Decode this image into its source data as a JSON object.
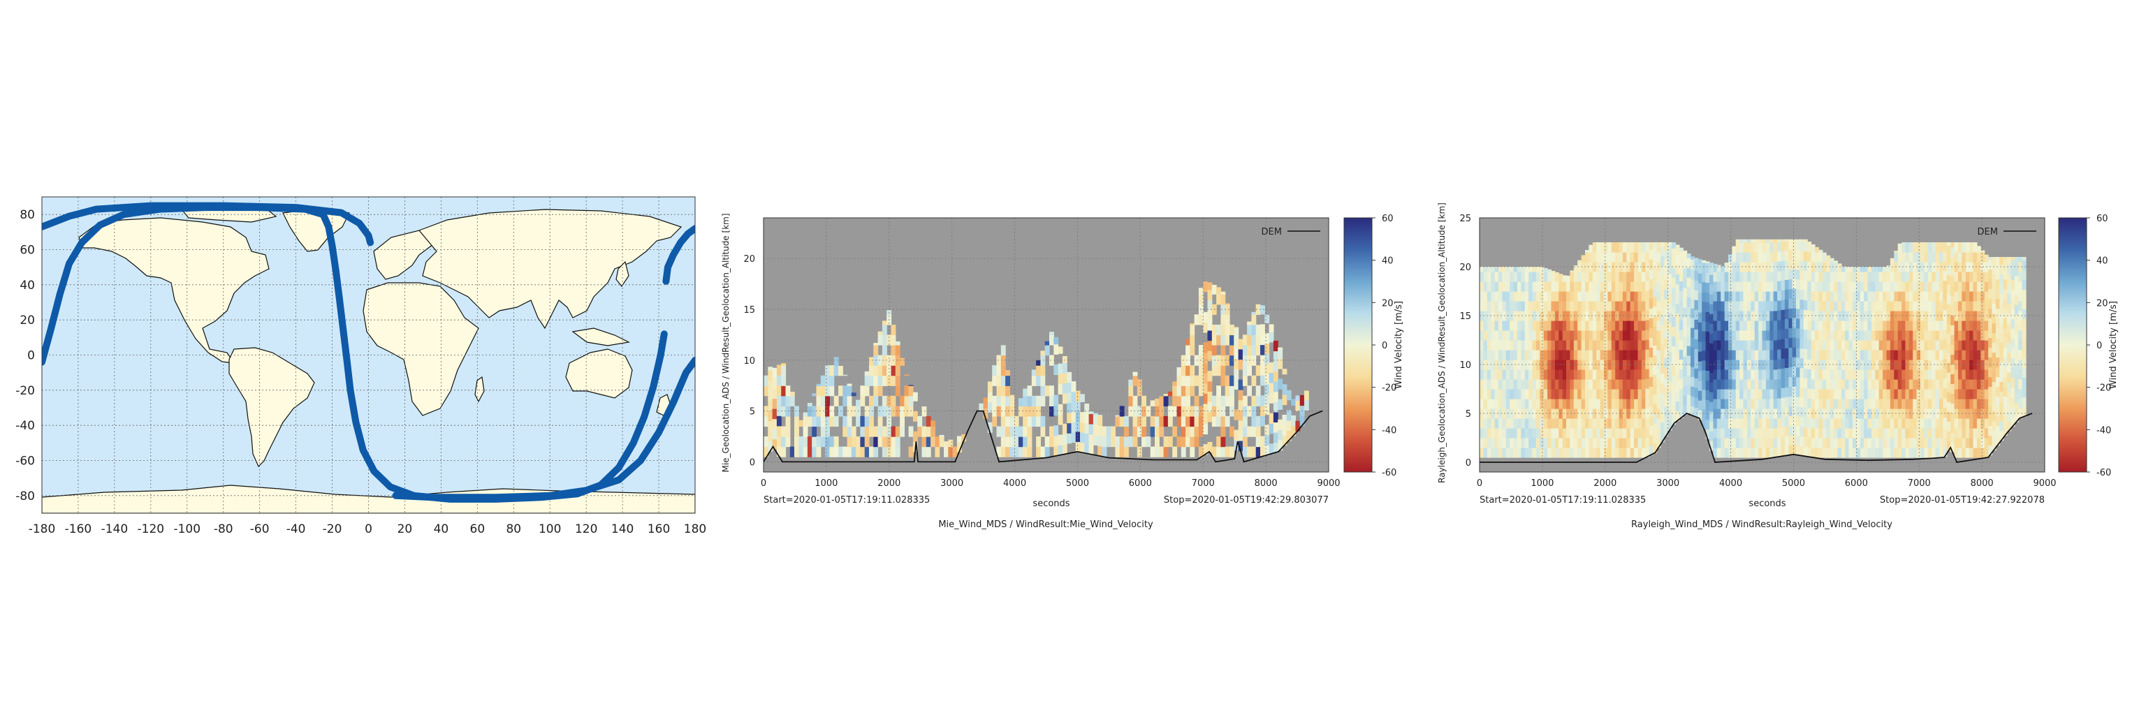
{
  "colors": {
    "ocean": "#cfe9fa",
    "land": "#fefbe0",
    "track": "#0e5aa8",
    "no_data": "#999999",
    "dem_line": "#111111",
    "colormap": [
      "#a71e26",
      "#d2563b",
      "#ee9c5a",
      "#f7dd9c",
      "#f2f4d6",
      "#b9dcea",
      "#6fa8d1",
      "#3c66aa",
      "#2a2c7c"
    ]
  },
  "chart_data": [
    {
      "type": "map",
      "title": "",
      "xlim": [
        -180,
        180
      ],
      "ylim": [
        -90,
        90
      ],
      "x_ticks": [
        "-180",
        "-160",
        "-140",
        "-120",
        "-100",
        "-80",
        "-60",
        "-40",
        "-20",
        "0",
        "20",
        "40",
        "60",
        "80",
        "100",
        "120",
        "140",
        "160",
        "180"
      ],
      "y_ticks": [
        "80",
        "60",
        "40",
        "20",
        "0",
        "-20",
        "-40",
        "-60",
        "-80"
      ],
      "grid": true,
      "series": [
        {
          "kind": "ground-track",
          "segments": [
            [
              [
                -180,
                -4
              ],
              [
                -175,
                15
              ],
              [
                -170,
                35
              ],
              [
                -165,
                52
              ],
              [
                -158,
                64
              ],
              [
                -148,
                74
              ],
              [
                -135,
                80
              ],
              [
                -115,
                83
              ],
              [
                -90,
                84
              ],
              [
                -60,
                84
              ],
              [
                -35,
                83
              ],
              [
                -25,
                80
              ],
              [
                -22,
                73
              ],
              [
                -20,
                62
              ],
              [
                -18,
                48
              ],
              [
                -16,
                32
              ],
              [
                -14,
                15
              ],
              [
                -12,
                -2
              ],
              [
                -10,
                -20
              ],
              [
                -7,
                -38
              ],
              [
                -3,
                -54
              ],
              [
                3,
                -66
              ],
              [
                12,
                -75
              ],
              [
                25,
                -80
              ],
              [
                45,
                -82
              ],
              [
                70,
                -82
              ],
              [
                95,
                -81
              ],
              [
                115,
                -79
              ],
              [
                128,
                -74
              ],
              [
                138,
                -64
              ],
              [
                146,
                -50
              ],
              [
                152,
                -35
              ],
              [
                157,
                -18
              ],
              [
                161,
                0
              ],
              [
                163,
                12
              ]
            ],
            [
              [
                -180,
                73
              ],
              [
                -165,
                79
              ],
              [
                -150,
                83
              ],
              [
                -120,
                85
              ],
              [
                -80,
                85
              ],
              [
                -40,
                84
              ],
              [
                -15,
                81
              ],
              [
                -5,
                75
              ],
              [
                0,
                68
              ],
              [
                1,
                64
              ]
            ],
            [
              [
                15,
                -80
              ],
              [
                35,
                -81
              ],
              [
                70,
                -81
              ],
              [
                100,
                -80
              ],
              [
                120,
                -77
              ],
              [
                138,
                -71
              ],
              [
                150,
                -60
              ],
              [
                160,
                -44
              ],
              [
                168,
                -27
              ],
              [
                175,
                -10
              ],
              [
                180,
                -3
              ]
            ],
            [
              [
                164,
                42
              ],
              [
                165,
                50
              ],
              [
                168,
                57
              ],
              [
                172,
                64
              ],
              [
                176,
                69
              ],
              [
                180,
                72
              ]
            ]
          ]
        }
      ]
    },
    {
      "type": "heatmap",
      "title": "Mie_Wind_MDS / WindResult:Mie_Wind_Velocity",
      "xlabel": "seconds",
      "ylabel": "Mie_Geolocation_ADS / WindResult_Geolocation_Altitude [km]",
      "xlim": [
        0,
        9000
      ],
      "ylim": [
        -1,
        24
      ],
      "x_ticks": [
        "0",
        "1000",
        "2000",
        "3000",
        "4000",
        "5000",
        "6000",
        "7000",
        "8000",
        "9000"
      ],
      "y_ticks": [
        "0",
        "5",
        "10",
        "15",
        "20"
      ],
      "start_label": "Start=2020-01-05T17:19:11.028335",
      "stop_label": "Stop=2020-01-05T19:42:29.803077",
      "legend": [
        "DEM"
      ],
      "colorbar_label": "Wind Velocity [m/s]",
      "colorbar_range": [
        -60,
        60
      ],
      "colorbar_ticks": [
        "60",
        "40",
        "20",
        "0",
        "-20",
        "-40",
        "-60"
      ],
      "valid_from_altitude": 0.5,
      "data_top_profile": [
        [
          0,
          9
        ],
        [
          300,
          10
        ],
        [
          600,
          4
        ],
        [
          900,
          8
        ],
        [
          1100,
          11
        ],
        [
          1500,
          6
        ],
        [
          1800,
          12
        ],
        [
          2000,
          15
        ],
        [
          2300,
          8
        ],
        [
          2600,
          5
        ],
        [
          2900,
          2
        ],
        [
          3300,
          3
        ],
        [
          3600,
          8
        ],
        [
          3800,
          12
        ],
        [
          4000,
          5
        ],
        [
          4300,
          9
        ],
        [
          4600,
          13
        ],
        [
          4900,
          9
        ],
        [
          5200,
          5
        ],
        [
          5600,
          4
        ],
        [
          5900,
          9
        ],
        [
          6200,
          6
        ],
        [
          6500,
          7
        ],
        [
          6800,
          13
        ],
        [
          7000,
          18
        ],
        [
          7300,
          17
        ],
        [
          7600,
          12
        ],
        [
          7900,
          16
        ],
        [
          8200,
          12
        ],
        [
          8400,
          6
        ],
        [
          8600,
          7
        ]
      ],
      "dem": [
        [
          0,
          0
        ],
        [
          150,
          1.5
        ],
        [
          300,
          0
        ],
        [
          1500,
          0
        ],
        [
          2400,
          0
        ],
        [
          2430,
          2
        ],
        [
          2460,
          0
        ],
        [
          3050,
          0
        ],
        [
          3250,
          3
        ],
        [
          3400,
          5
        ],
        [
          3500,
          5
        ],
        [
          3600,
          3
        ],
        [
          3750,
          0
        ],
        [
          4500,
          0.4
        ],
        [
          5000,
          1
        ],
        [
          5500,
          0.4
        ],
        [
          6200,
          0.2
        ],
        [
          6900,
          0.2
        ],
        [
          7100,
          1
        ],
        [
          7200,
          0
        ],
        [
          7500,
          0.3
        ],
        [
          7550,
          2
        ],
        [
          7650,
          0
        ],
        [
          8200,
          1
        ],
        [
          8500,
          3
        ],
        [
          8700,
          4.5
        ],
        [
          8900,
          5
        ]
      ]
    },
    {
      "type": "heatmap",
      "title": "Rayleigh_Wind_MDS / WindResult:Rayleigh_Wind_Velocity",
      "xlabel": "seconds",
      "ylabel": "Rayleigh_Geolocation_ADS / WindResult_Geolocation_Altitude [km]",
      "xlim": [
        0,
        9000
      ],
      "ylim": [
        -1,
        25
      ],
      "x_ticks": [
        "0",
        "1000",
        "2000",
        "3000",
        "4000",
        "5000",
        "6000",
        "7000",
        "8000",
        "9000"
      ],
      "y_ticks": [
        "0",
        "5",
        "10",
        "15",
        "20",
        "25"
      ],
      "start_label": "Start=2020-01-05T17:19:11.028335",
      "stop_label": "Stop=2020-01-05T19:42:27.922078",
      "legend": [
        "DEM"
      ],
      "colorbar_label": "Wind Velocity [m/s]",
      "colorbar_range": [
        -60,
        60
      ],
      "colorbar_ticks": [
        "60",
        "40",
        "20",
        "0",
        "-20",
        "-40",
        "-60"
      ],
      "valid_from_altitude": 0.5,
      "data_top_profile": [
        [
          0,
          20
        ],
        [
          1000,
          20
        ],
        [
          1400,
          19
        ],
        [
          1800,
          22.5
        ],
        [
          3100,
          22.5
        ],
        [
          3400,
          21
        ],
        [
          3900,
          20
        ],
        [
          4100,
          22.8
        ],
        [
          5200,
          22.8
        ],
        [
          5800,
          20
        ],
        [
          6500,
          20
        ],
        [
          6700,
          22.5
        ],
        [
          7900,
          22.5
        ],
        [
          8100,
          21
        ],
        [
          8600,
          21
        ]
      ],
      "wind_features": [
        {
          "x": 1250,
          "alt": 10,
          "value": -60
        },
        {
          "x": 2350,
          "alt": 11,
          "value": -55
        },
        {
          "x": 3700,
          "alt": 11,
          "value": 55
        },
        {
          "x": 4800,
          "alt": 12,
          "value": 55
        },
        {
          "x": 6650,
          "alt": 10,
          "value": -55
        },
        {
          "x": 7800,
          "alt": 10,
          "value": -45
        }
      ],
      "dem": [
        [
          0,
          0
        ],
        [
          2500,
          0
        ],
        [
          2800,
          1
        ],
        [
          3000,
          3
        ],
        [
          3100,
          4
        ],
        [
          3300,
          5
        ],
        [
          3500,
          4.5
        ],
        [
          3600,
          3
        ],
        [
          3750,
          0
        ],
        [
          4500,
          0.3
        ],
        [
          5000,
          0.8
        ],
        [
          5500,
          0.3
        ],
        [
          6200,
          0.2
        ],
        [
          6900,
          0.3
        ],
        [
          7200,
          0.4
        ],
        [
          7400,
          0.5
        ],
        [
          7500,
          1.5
        ],
        [
          7600,
          0
        ],
        [
          8100,
          0.5
        ],
        [
          8400,
          3
        ],
        [
          8600,
          4.5
        ],
        [
          8800,
          5
        ]
      ]
    }
  ]
}
